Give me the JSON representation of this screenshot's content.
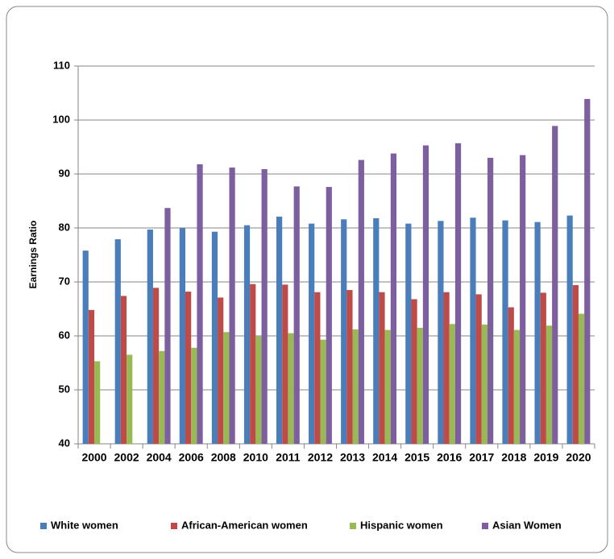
{
  "chart_data": {
    "type": "bar",
    "y_label": "Earnings Ratio",
    "categories": [
      "2000",
      "2002",
      "2004",
      "2006",
      "2008",
      "2010",
      "2011",
      "2012",
      "2013",
      "2014",
      "2015",
      "2016",
      "2017",
      "2018",
      "2019",
      "2020"
    ],
    "series": [
      {
        "name": "White women",
        "color": "#4a7ebb",
        "values": [
          75.8,
          77.9,
          79.7,
          80.0,
          79.3,
          80.5,
          82.1,
          80.8,
          81.6,
          81.8,
          80.8,
          81.3,
          81.9,
          81.4,
          81.1,
          82.3
        ]
      },
      {
        "name": "African-American women",
        "color": "#be4b48",
        "values": [
          64.8,
          67.4,
          68.9,
          68.2,
          67.1,
          69.6,
          69.5,
          68.1,
          68.5,
          68.1,
          66.8,
          68.1,
          67.7,
          65.3,
          68.0,
          69.4
        ]
      },
      {
        "name": "Hispanic women",
        "color": "#98b954",
        "values": [
          55.3,
          56.5,
          57.2,
          57.8,
          60.7,
          59.9,
          60.5,
          59.3,
          61.2,
          61.1,
          61.5,
          62.2,
          62.1,
          61.1,
          61.9,
          64.1
        ]
      },
      {
        "name": "Asian Women",
        "color": "#7d5fa0",
        "values": [
          null,
          null,
          83.7,
          91.8,
          91.2,
          90.9,
          87.7,
          87.6,
          92.6,
          93.8,
          95.3,
          95.7,
          93.0,
          93.5,
          98.9,
          103.9
        ]
      }
    ],
    "ylim": [
      40,
      110
    ],
    "yticks": [
      40,
      50,
      60,
      70,
      80,
      90,
      100,
      110
    ],
    "grid": true,
    "legend": "bottom"
  }
}
